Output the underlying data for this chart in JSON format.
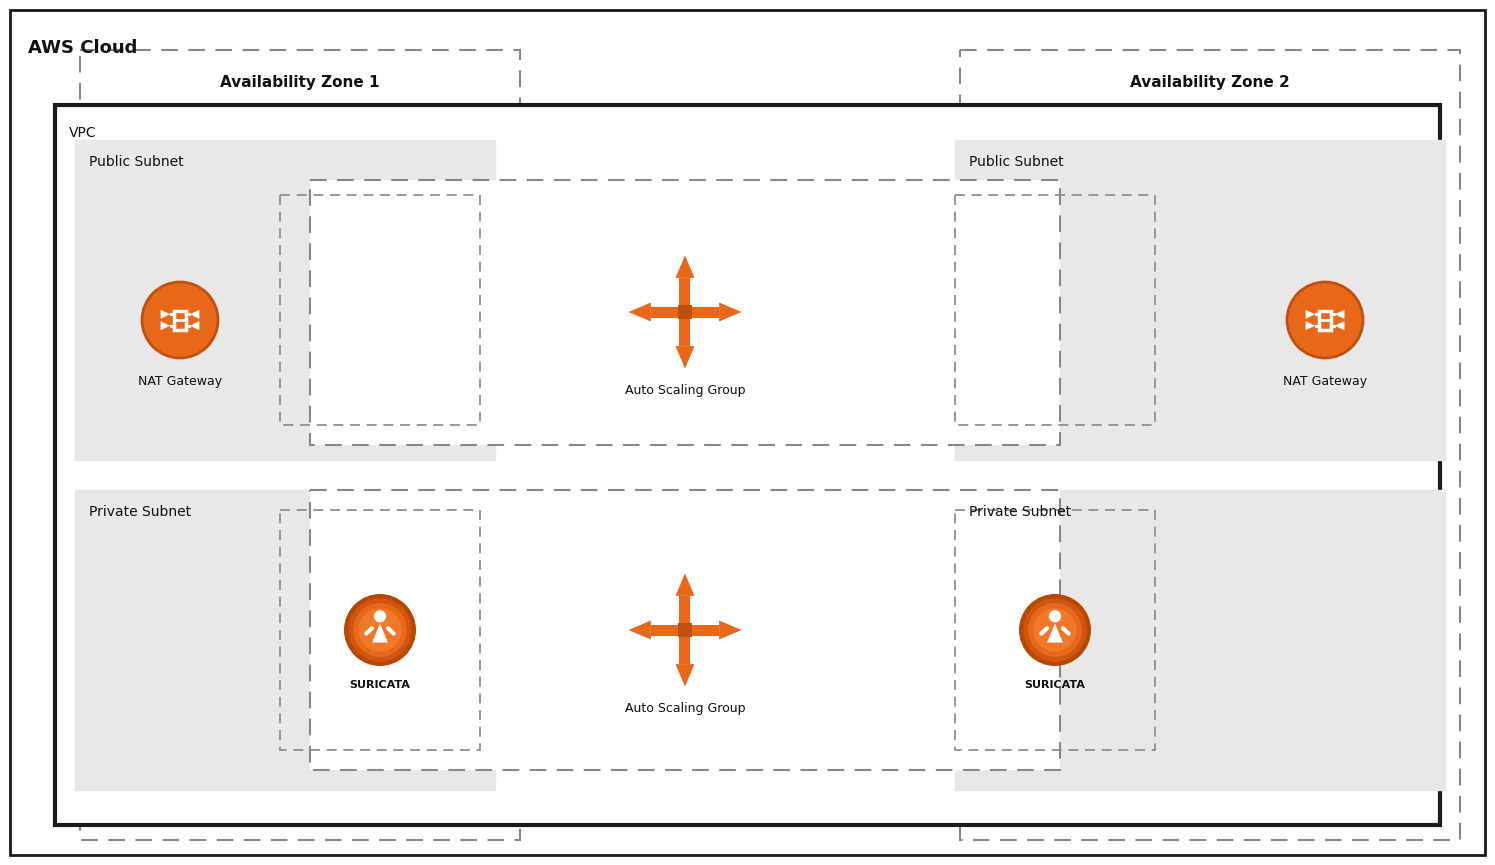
{
  "background_color": "#ffffff",
  "title": "AWS Cloud",
  "title_fontsize": 13,
  "label_fontsize": 11,
  "small_label_fontsize": 10,
  "icon_label_fontsize": 9,
  "border_color": "#1a1a1a",
  "dashed_color": "#444444",
  "subnet_fill": "#e8e8e8",
  "orange_main": "#E8681A",
  "orange_dark": "#C05010",
  "orange_med": "#F07820",
  "nat_gw_label": "NAT Gateway",
  "pub_subnet_label": "Public Subnet",
  "priv_subnet_label": "Private Subnet",
  "az1_label": "Availability Zone 1",
  "az2_label": "Availability Zone 2",
  "vpc_label": "VPC",
  "auto_scaling_label": "Auto Scaling Group",
  "suricata_label": "SURICATA"
}
